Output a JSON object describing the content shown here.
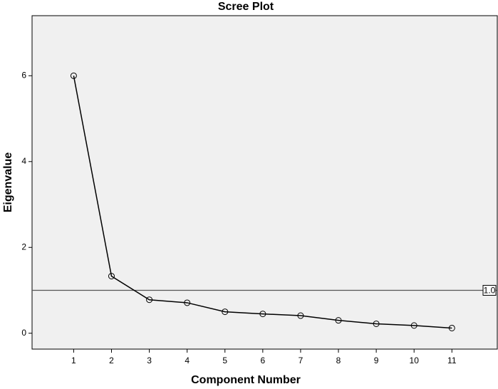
{
  "chart_data": {
    "type": "line",
    "title": "Scree Plot",
    "x_label": "Component Number",
    "y_label": "Eigenvalue",
    "x": [
      1,
      2,
      3,
      4,
      5,
      6,
      7,
      8,
      9,
      10,
      11
    ],
    "values": [
      6.0,
      1.33,
      0.78,
      0.71,
      0.5,
      0.45,
      0.41,
      0.3,
      0.22,
      0.18,
      0.12
    ],
    "color": "#000000",
    "xlim": [
      -0.1,
      12.2
    ],
    "xticks": [
      1,
      2,
      3,
      4,
      5,
      6,
      7,
      8,
      9,
      10,
      11
    ],
    "ylim": [
      -0.37,
      7.4
    ],
    "yticks": [
      0,
      2,
      4,
      6
    ],
    "reference_line": {
      "value": 1.0,
      "label": "1.0"
    }
  }
}
